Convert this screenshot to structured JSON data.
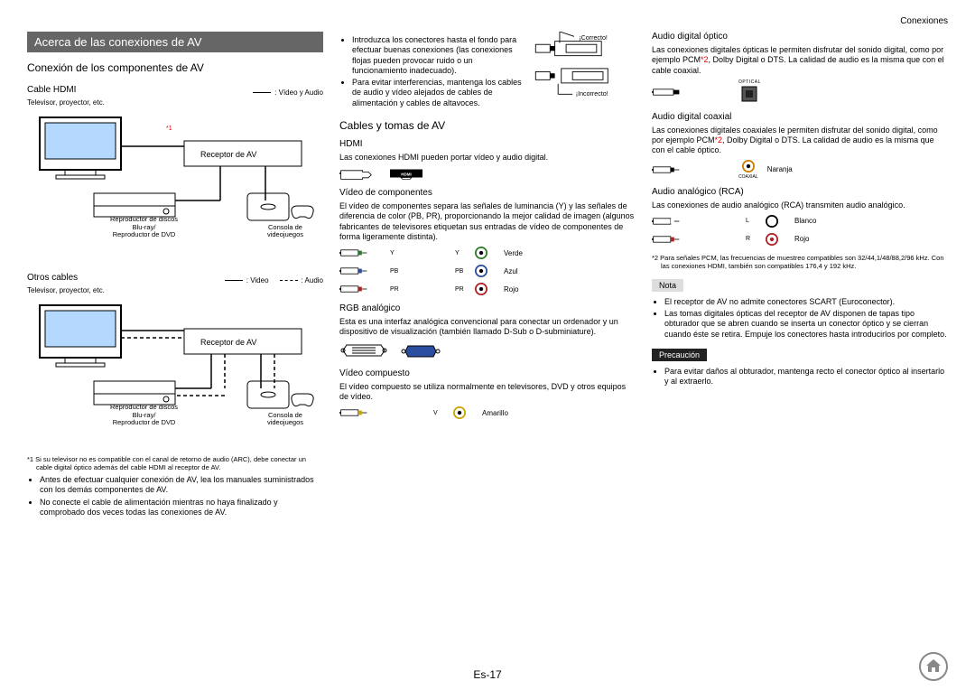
{
  "header": {
    "section": "Conexiones"
  },
  "titleBar": "Acerca de las conexiones de AV",
  "col1": {
    "sectionTitle": "Conexión de los componentes de AV",
    "hdmi": {
      "title": "Cable HDMI",
      "legend": ": Vídeo y Audio",
      "tvLabel": "Televisor, proyector, etc.",
      "receiver": "Receptor de AV",
      "blurayLine1": "Reproductor de discos",
      "blurayLine2": "Blu-ray/",
      "blurayLine3": "Reproductor de DVD",
      "consoleLine1": "Consola de",
      "consoleLine2": "videojuegos",
      "starRef": "*1"
    },
    "other": {
      "title": "Otros cables",
      "legendV": ": Video",
      "legendA": ": Audio",
      "tvLabel": "Televisor, proyector, etc.",
      "receiver": "Receptor de AV",
      "blurayLine1": "Reproductor de discos",
      "blurayLine2": "Blu-ray/",
      "blurayLine3": "Reproductor de DVD",
      "consoleLine1": "Consola de",
      "consoleLine2": "videojuegos"
    },
    "footnote1": "*1 Si su televisor no es compatible con el canal de retorno de audio (ARC), debe conectar un cable digital óptico además del cable HDMI al receptor de AV.",
    "bullets": [
      "Antes de efectuar cualquier conexión de AV, lea los manuales suministrados con los demás componentes de AV.",
      "No conecte el cable de alimentación mientras no haya finalizado y comprobado dos veces todas las conexiones de AV."
    ]
  },
  "col2": {
    "topBullets": [
      "Introduzca los conectores hasta el fondo para efectuar buenas conexiones (las conexiones flojas pueden provocar ruido o un funcionamiento inadecuado).",
      "Para evitar interferencias, mantenga los cables de audio y vídeo alejados de cables de alimentación y cables de altavoces."
    ],
    "correct": "¡Correcto!",
    "incorrect": "¡Incorrecto!",
    "cablesTitle": "Cables y tomas de AV",
    "hdmi": {
      "title": "HDMI",
      "text": "Las conexiones HDMI pueden portar vídeo y audio digital.",
      "badge": "HDMI"
    },
    "component": {
      "title": "Vídeo de componentes",
      "text": "El vídeo de componentes separa las señales de luminancia (Y) y las señales de diferencia de color (PB, PR), proporcionando la mejor calidad de imagen (algunos fabricantes de televisores etiquetan sus entradas de vídeo de componentes de forma ligeramente distinta).",
      "rows": [
        {
          "key": "Y",
          "label": "Verde",
          "color": "#2a7d2a"
        },
        {
          "key": "PB",
          "label": "Azul",
          "color": "#2b4ea0"
        },
        {
          "key": "PR",
          "label": "Rojo",
          "color": "#b02020"
        }
      ]
    },
    "rgb": {
      "title": "RGB analógico",
      "text": "Esta es una interfaz analógica convencional para conectar un ordenador y un dispositivo de visualización (también llamado D-Sub o D-subminiature)."
    },
    "composite": {
      "title": "Vídeo compuesto",
      "text": "El vídeo compuesto se utiliza normalmente en televisores, DVD y otros equipos de vídeo.",
      "row": {
        "key": "V",
        "label": "Amarillo",
        "color": "#c9a400"
      }
    }
  },
  "col3": {
    "optical": {
      "title": "Audio digital óptico",
      "text": "Las conexiones digitales ópticas le permiten disfrutar del sonido digital, como por ejemplo PCM*2, Dolby Digital o DTS. La calidad de audio es la misma que con el cable coaxial.",
      "badge": "OPTICAL"
    },
    "coax": {
      "title": "Audio digital coaxial",
      "text": "Las conexiones digitales coaxiales le permiten disfrutar del sonido digital, como por ejemplo PCM*2, Dolby Digital o DTS. La calidad de audio es la misma que con el cable óptico.",
      "label": "Naranja",
      "color": "#d17a00",
      "badge": "COAXIAL"
    },
    "rca": {
      "title": "Audio analógico (RCA)",
      "text": "Las conexiones de audio analógico (RCA) transmiten audio analógico.",
      "rows": [
        {
          "key": "L",
          "label": "Blanco",
          "color": "#000",
          "fill": "#fff"
        },
        {
          "key": "R",
          "label": "Rojo",
          "color": "#b02020",
          "fill": "#b02020"
        }
      ]
    },
    "footnote2": "*2 Para señales PCM, las frecuencias de muestreo compatibles son 32/44,1/48/88,2/96 kHz. Con las conexiones HDMI, también son compatibles 176,4 y 192 kHz.",
    "notaLabel": "Nota",
    "notaBullets": [
      "El receptor de AV no admite conectores SCART (Euroconector).",
      "Las tomas digitales ópticas del receptor de AV disponen de tapas tipo obturador que se abren cuando se inserta un conector óptico y se cierran cuando éste se retira. Empuje los conectores hasta introducirlos por completo."
    ],
    "precLabel": "Precaución",
    "precBullets": [
      "Para evitar daños al obturador, mantenga recto el conector óptico al insertarlo y al extraerlo."
    ]
  },
  "pageNum": "Es-17"
}
